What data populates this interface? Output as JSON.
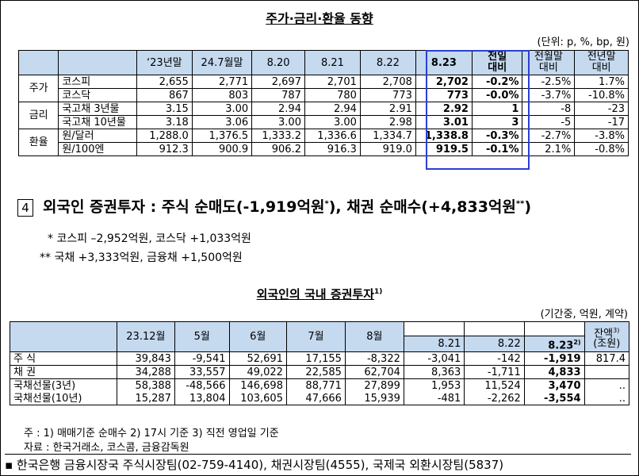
{
  "section1": {
    "title": "주가·금리·환율 동향",
    "unit": "(단위: p, %, bp, 원)",
    "headers": [
      "",
      "",
      "‘23년말",
      "24.7월말",
      "8.20",
      "8.21",
      "8.22",
      "8.23",
      "전일\n대비",
      "전월말\n대비",
      "전년말\n대비"
    ],
    "groups": [
      {
        "name": "주가",
        "rows": [
          {
            "label": "코스피",
            "vals": [
              "2,655",
              "2,771",
              "2,697",
              "2,701",
              "2,708",
              "2,702",
              "-0.2%",
              "-2.5%",
              "1.7%"
            ]
          },
          {
            "label": "코스닥",
            "vals": [
              "867",
              "803",
              "787",
              "780",
              "773",
              "773",
              "-0.0%",
              "-3.7%",
              "-10.8%"
            ]
          }
        ]
      },
      {
        "name": "금리",
        "rows": [
          {
            "label": "국고채 3년물",
            "vals": [
              "3.15",
              "3.00",
              "2.94",
              "2.94",
              "2.91",
              "2.92",
              "1",
              "-8",
              "-23"
            ]
          },
          {
            "label": "국고채 10년물",
            "vals": [
              "3.18",
              "3.06",
              "3.00",
              "3.00",
              "2.98",
              "3.01",
              "3",
              "-5",
              "-17"
            ]
          }
        ]
      },
      {
        "name": "환율",
        "rows": [
          {
            "label": "원/달러",
            "vals": [
              "1,288.0",
              "1,376.5",
              "1,333.2",
              "1,336.6",
              "1,334.7",
              "1,338.8",
              "-0.3%",
              "-2.7%",
              "-3.8%"
            ]
          },
          {
            "label": "원/100엔",
            "vals": [
              "912.3",
              "900.9",
              "906.2",
              "916.3",
              "919.0",
              "919.5",
              "-0.1%",
              "2.1%",
              "-0.8%"
            ]
          }
        ]
      }
    ]
  },
  "section4": {
    "number": "4",
    "heading": "외국인 증권투자 : 주식 순매도(-1,919억원",
    "heading_sup1": "*",
    "heading_mid": "), 채권 순매수(+4,833억원",
    "heading_sup2": "**",
    "heading_end": ")",
    "note1": "*  코스피  –2,952억원,  코스닥  +1,033억원",
    "note2": "**  국채  +3,333억원,  금융채  +1,500억원"
  },
  "section2": {
    "title": "외국인의 국내 증권투자",
    "title_sup": "1)",
    "unit": "(기간중, 억원, 계약)",
    "headers": [
      "",
      "23.12월",
      "5월",
      "6월",
      "7월",
      "8월",
      "8.21",
      "8.22",
      "8.23",
      "잔액",
      "(조원)"
    ],
    "header_sup_823": "2)",
    "header_sup_balance": "3)",
    "rows": [
      {
        "label": "주  식",
        "vals": [
          "39,843",
          "-9,541",
          "52,691",
          "17,155",
          "-8,322",
          "-3,041",
          "-142",
          "-1,919",
          "817.4"
        ]
      },
      {
        "label": "채  권",
        "vals": [
          "34,288",
          "33,557",
          "49,022",
          "22,585",
          "62,704",
          "8,363",
          "-1,711",
          "4,833",
          ""
        ]
      },
      {
        "label": "국채선물(3년)",
        "vals": [
          "58,388",
          "-48,566",
          "146,698",
          "88,771",
          "27,899",
          "1,953",
          "11,524",
          "3,470",
          ".."
        ]
      },
      {
        "label": "국채선물(10년)",
        "vals": [
          "15,287",
          "13,804",
          "103,605",
          "47,666",
          "15,939",
          "-481",
          "-2,262",
          "-3,554",
          ".."
        ]
      }
    ],
    "footnote1": "주 : 1) 매매기준 순매수     2) 17시 기준     3) 직전 영업일 기준",
    "footnote2": "자료 : 한국거래소, 코스콤, 금융감독원"
  },
  "footer": "▪ 한국은행 금융시장국 주식시장팀(02-759-4140), 채권시장팀(4555), 국제국 외환시장팀(5837)"
}
